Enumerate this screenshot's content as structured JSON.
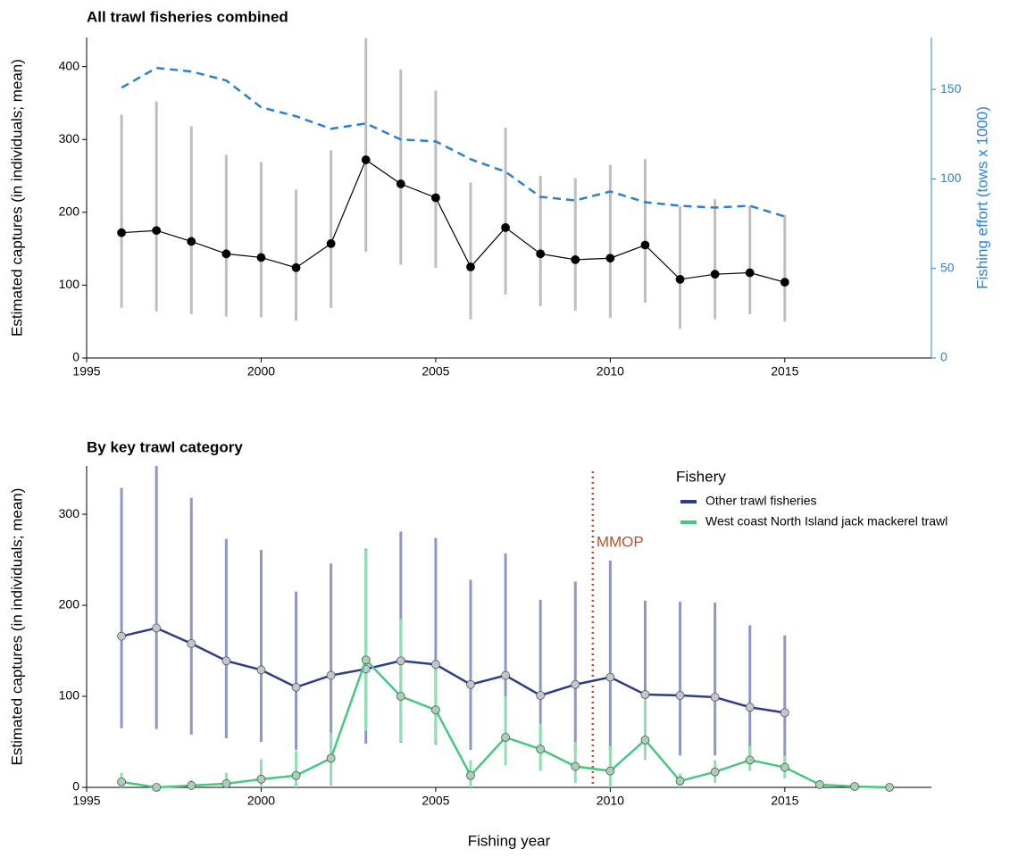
{
  "chart_data": [
    {
      "type": "line",
      "title": "All trawl fisheries combined",
      "ylabel": "Estimated captures (in individuals; mean)",
      "y2label": "Fishing effort (tows x 1000)",
      "x": [
        1996,
        1997,
        1998,
        1999,
        2000,
        2001,
        2002,
        2003,
        2004,
        2005,
        2006,
        2007,
        2008,
        2009,
        2010,
        2011,
        2012,
        2013,
        2014,
        2015
      ],
      "xlim": [
        1995,
        2019.2
      ],
      "xticks": [
        1995,
        2000,
        2005,
        2010,
        2015
      ],
      "ylim": [
        0,
        440
      ],
      "yticks": [
        0,
        100,
        200,
        300,
        400
      ],
      "y2lim": [
        0,
        179
      ],
      "y2ticks": [
        0,
        50,
        100,
        150
      ],
      "y2color": "#2b80d0",
      "series": [
        {
          "color": "#000000",
          "marker_fill": "#000000",
          "error_color": "#bebebe",
          "values": [
            172,
            175,
            160,
            143,
            138,
            124,
            157,
            272,
            239,
            220,
            125,
            179,
            143,
            135,
            137,
            155,
            108,
            115,
            117,
            104
          ],
          "lower": [
            69,
            64,
            60,
            57,
            56,
            51,
            69,
            146,
            128,
            124,
            53,
            87,
            71,
            65,
            55,
            76,
            40,
            53,
            60,
            50
          ],
          "upper": [
            334,
            352,
            318,
            279,
            269,
            231,
            285,
            439,
            396,
            367,
            241,
            316,
            250,
            247,
            265,
            273,
            208,
            218,
            209,
            196
          ]
        },
        {
          "axis": "y2",
          "color": "#2b80d0",
          "dash": "dashed",
          "values": [
            151,
            162,
            160,
            155,
            140,
            135,
            128,
            131,
            122,
            121,
            111,
            104,
            90,
            88,
            93,
            87,
            85,
            84,
            85,
            79
          ]
        }
      ]
    },
    {
      "type": "line",
      "title": "By key trawl category",
      "ylabel": "Estimated captures (in individuals; mean)",
      "xlabel": "Fishing year",
      "legend_title": "Fishery",
      "x": [
        1996,
        1997,
        1998,
        1999,
        2000,
        2001,
        2002,
        2003,
        2004,
        2005,
        2006,
        2007,
        2008,
        2009,
        2010,
        2011,
        2012,
        2013,
        2014,
        2015,
        2016,
        2017,
        2018
      ],
      "xlim": [
        1995,
        2019.2
      ],
      "xticks": [
        1995,
        2000,
        2005,
        2010,
        2015
      ],
      "ylim": [
        0,
        353
      ],
      "yticks": [
        0,
        100,
        200,
        300
      ],
      "vlines": [
        {
          "x": 2009.5,
          "label": "MMOP",
          "color": "#b5532e"
        }
      ],
      "series": [
        {
          "name": "Other trawl fisheries",
          "color": "#2c3e8a",
          "marker_fill": "#c4c6ce",
          "error_color": "#8c97c8",
          "values": [
            166,
            175,
            158,
            139,
            129,
            110,
            123,
            130,
            139,
            135,
            113,
            123,
            101,
            113,
            121,
            102,
            101,
            99,
            88,
            82,
            null,
            null,
            null
          ],
          "lower": [
            65,
            64,
            58,
            54,
            50,
            41,
            42,
            48,
            49,
            47,
            41,
            49,
            37,
            39,
            40,
            39,
            35,
            35,
            30,
            26,
            null,
            null,
            null
          ],
          "upper": [
            329,
            353,
            318,
            273,
            261,
            215,
            246,
            262,
            281,
            274,
            228,
            257,
            206,
            226,
            249,
            205,
            204,
            203,
            178,
            167,
            null,
            null,
            null
          ]
        },
        {
          "name": "West coast North Island jack mackerel trawl",
          "color": "#45c97e",
          "marker_fill": "#a9cfb4",
          "error_color": "#8fe0b0",
          "values": [
            6,
            0,
            2,
            4,
            9,
            13,
            32,
            140,
            100,
            85,
            13,
            55,
            42,
            23,
            18,
            52,
            7,
            17,
            30,
            22,
            3,
            1,
            0
          ],
          "lower": [
            0,
            0,
            0,
            0,
            0,
            0,
            2,
            62,
            50,
            48,
            0,
            24,
            18,
            5,
            0,
            30,
            0,
            5,
            18,
            10,
            0,
            0,
            0
          ],
          "upper": [
            16,
            2,
            8,
            16,
            31,
            40,
            60,
            261,
            185,
            130,
            30,
            100,
            70,
            50,
            45,
            100,
            15,
            30,
            45,
            35,
            8,
            3,
            1
          ]
        }
      ]
    }
  ]
}
